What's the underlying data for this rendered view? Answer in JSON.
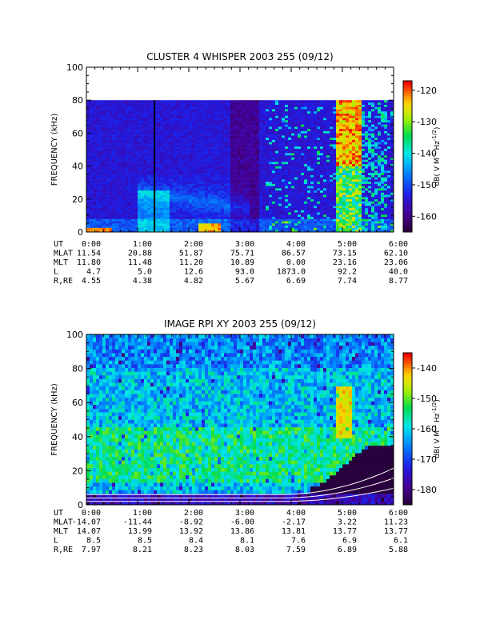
{
  "chart_data": [
    {
      "type": "heatmap",
      "title": "CLUSTER 4 WHISPER 2003 255 (09/12)",
      "ylabel": "FREQUENCY (kHz)",
      "ylim": [
        0,
        100
      ],
      "yticks": [
        "0",
        "20",
        "40",
        "60",
        "80",
        "100"
      ],
      "data_ceiling_khz": 80,
      "marker_time_hours": 1.33,
      "colorbar": {
        "label_parts": [
          "dB( V M",
          "-1",
          " Hz",
          "-1/2",
          ")"
        ],
        "range": [
          -165,
          -117
        ],
        "ticks": [
          "-120",
          "-130",
          "-140",
          "-150",
          "-160"
        ]
      },
      "annotation_rows": [
        {
          "label": "UT",
          "values": [
            "0:00",
            "1:00",
            "2:00",
            "3:00",
            "4:00",
            "5:00",
            "6:00"
          ]
        },
        {
          "label": "MLAT",
          "values": [
            "11.54",
            "20.88",
            "51.87",
            "75.71",
            "86.57",
            "73.15",
            "62.10"
          ]
        },
        {
          "label": "MLT",
          "values": [
            "11.80",
            "11.48",
            "11.20",
            "10.89",
            "0.00",
            "23.16",
            "23.06"
          ]
        },
        {
          "label": "L",
          "values": [
            "4.7",
            "5.0",
            "12.6",
            "93.0",
            "1873.0",
            "92.2",
            "40.0"
          ]
        },
        {
          "label": "R,RE",
          "values": [
            "4.55",
            "4.38",
            "4.82",
            "5.67",
            "6.69",
            "7.74",
            "8.77"
          ]
        }
      ]
    },
    {
      "type": "heatmap",
      "title": "IMAGE RPI XY 2003 255 (09/12)",
      "ylabel": "FREQUENCY (kHz)",
      "ylim": [
        0,
        100
      ],
      "yticks": [
        "0",
        "20",
        "40",
        "60",
        "80",
        "100"
      ],
      "colorbar": {
        "label_parts": [
          "dB( V M",
          "-1",
          " Hz",
          "-1/2",
          ")"
        ],
        "range": [
          -185,
          -135
        ],
        "ticks": [
          "-140",
          "-150",
          "-160",
          "-170",
          "-180"
        ]
      },
      "annotation_rows": [
        {
          "label": "UT",
          "values": [
            "0:00",
            "1:00",
            "2:00",
            "3:00",
            "4:00",
            "5:00",
            "6:00"
          ]
        },
        {
          "label": "MLAT",
          "values": [
            "-14.07",
            "-11.44",
            "-8.92",
            "-6.00",
            "-2.17",
            "3.22",
            "11.23"
          ]
        },
        {
          "label": "MLT",
          "values": [
            "14.07",
            "13.99",
            "13.92",
            "13.86",
            "13.81",
            "13.77",
            "13.77"
          ]
        },
        {
          "label": "L",
          "values": [
            "8.5",
            "8.5",
            "8.4",
            "8.1",
            "7.6",
            "6.9",
            "6.1"
          ]
        },
        {
          "label": "R,RE",
          "values": [
            "7.97",
            "8.21",
            "8.23",
            "8.03",
            "7.59",
            "6.89",
            "5.88"
          ]
        }
      ]
    }
  ]
}
